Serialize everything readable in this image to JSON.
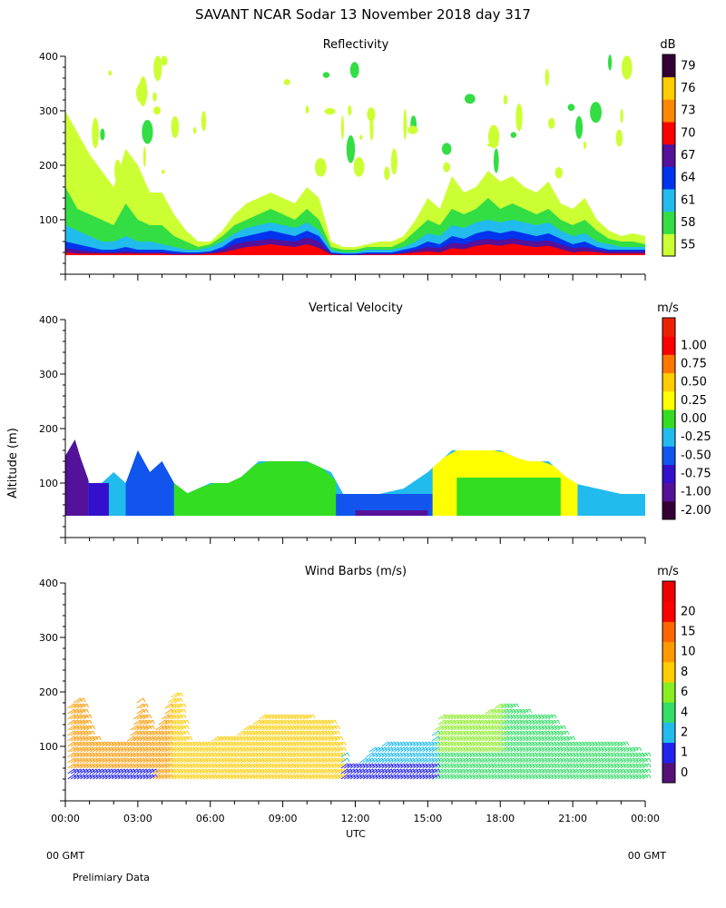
{
  "figure": {
    "title": "SAVANT  NCAR Sodar  13 November 2018  day 317",
    "ylabel": "Altitude (m)",
    "xlabel": "UTC",
    "x_ticks": [
      "00:00",
      "03:00",
      "06:00",
      "09:00",
      "12:00",
      "15:00",
      "18:00",
      "21:00",
      "00:00"
    ],
    "left_footer": "00 GMT",
    "right_footer": "00 GMT",
    "note": "Prelimiary Data"
  },
  "chart_data": [
    {
      "type": "heatmap",
      "title": "Reflectivity",
      "unit": "dB",
      "xlim": [
        0,
        24
      ],
      "ylim": [
        0,
        400
      ],
      "yticks": [
        100,
        200,
        300,
        400
      ],
      "colorbar": {
        "labels": [
          "55",
          "58",
          "61",
          "64",
          "67",
          "70",
          "73",
          "76",
          "79"
        ],
        "colors": [
          "#ccff33",
          "#33dd44",
          "#22bbee",
          "#0033ee",
          "#551199",
          "#ff0000",
          "#ff8800",
          "#ffcc00",
          "#330033"
        ]
      },
      "profile": {
        "x": [
          0,
          0.5,
          1,
          1.5,
          2,
          2.5,
          3,
          3.5,
          4,
          4.5,
          5,
          5.5,
          6,
          6.5,
          7,
          7.5,
          8,
          8.5,
          9,
          9.5,
          10,
          10.5,
          11,
          11.5,
          12,
          12.5,
          13,
          13.5,
          14,
          14.5,
          15,
          15.5,
          16,
          16.5,
          17,
          17.5,
          18,
          18.5,
          19,
          19.5,
          20,
          20.5,
          21,
          21.5,
          22,
          22.5,
          23,
          23.5,
          24
        ],
        "top_55": [
          300,
          260,
          220,
          190,
          160,
          230,
          200,
          150,
          150,
          110,
          80,
          60,
          60,
          80,
          110,
          130,
          140,
          150,
          140,
          130,
          160,
          140,
          60,
          50,
          50,
          55,
          60,
          60,
          70,
          100,
          140,
          120,
          180,
          150,
          160,
          190,
          170,
          180,
          160,
          150,
          170,
          130,
          120,
          140,
          100,
          80,
          70,
          75,
          70
        ],
        "top_58": [
          160,
          120,
          110,
          100,
          90,
          130,
          100,
          90,
          90,
          70,
          60,
          50,
          55,
          70,
          90,
          100,
          110,
          120,
          110,
          100,
          120,
          100,
          50,
          45,
          45,
          50,
          50,
          50,
          60,
          80,
          100,
          90,
          120,
          110,
          120,
          140,
          120,
          130,
          120,
          110,
          120,
          100,
          90,
          100,
          80,
          65,
          60,
          60,
          55
        ],
        "top_61": [
          90,
          80,
          70,
          60,
          60,
          70,
          60,
          60,
          55,
          50,
          45,
          45,
          50,
          60,
          75,
          85,
          90,
          95,
          90,
          85,
          95,
          80,
          45,
          40,
          40,
          45,
          45,
          45,
          50,
          60,
          75,
          70,
          90,
          85,
          95,
          100,
          95,
          100,
          95,
          90,
          95,
          80,
          70,
          75,
          60,
          55,
          50,
          50,
          50
        ],
        "top_64": [
          60,
          55,
          50,
          45,
          45,
          50,
          45,
          45,
          45,
          42,
          40,
          40,
          42,
          50,
          65,
          70,
          75,
          80,
          75,
          70,
          80,
          70,
          40,
          38,
          38,
          40,
          40,
          40,
          45,
          50,
          60,
          55,
          70,
          65,
          75,
          80,
          75,
          80,
          75,
          70,
          75,
          65,
          55,
          60,
          50,
          45,
          45,
          45,
          45
        ],
        "top_67": [
          48,
          45,
          42,
          40,
          40,
          42,
          40,
          40,
          40,
          38,
          38,
          38,
          40,
          45,
          55,
          60,
          62,
          65,
          62,
          60,
          68,
          60,
          38,
          36,
          36,
          38,
          38,
          38,
          40,
          45,
          50,
          48,
          58,
          55,
          62,
          65,
          62,
          66,
          62,
          60,
          62,
          55,
          48,
          50,
          45,
          42,
          42,
          42,
          42
        ],
        "top_70": [
          40,
          38,
          38,
          38,
          38,
          38,
          38,
          38,
          38,
          36,
          36,
          36,
          38,
          40,
          45,
          50,
          52,
          55,
          52,
          50,
          55,
          48,
          36,
          35,
          35,
          36,
          36,
          36,
          38,
          40,
          42,
          40,
          48,
          46,
          52,
          55,
          52,
          56,
          52,
          50,
          52,
          46,
          40,
          42,
          40,
          38,
          38,
          38,
          38
        ]
      }
    },
    {
      "type": "heatmap",
      "title": "Vertical Velocity",
      "unit": "m/s",
      "xlim": [
        0,
        24
      ],
      "ylim": [
        0,
        400
      ],
      "yticks": [
        100,
        200,
        300,
        400
      ],
      "colorbar": {
        "labels": [
          "-2.00",
          "-1.00",
          "-0.75",
          "-0.50",
          "-0.25",
          "0.00",
          "0.25",
          "0.50",
          "0.75",
          "1.00"
        ],
        "colors": [
          "#330033",
          "#551199",
          "#3311cc",
          "#1155ee",
          "#22bbee",
          "#33dd22",
          "#ffff00",
          "#ffcc00",
          "#ff7700",
          "#ff0000",
          "#ee2200"
        ]
      },
      "top": {
        "x": [
          0,
          0.4,
          0.6,
          1.0,
          1.5,
          2.0,
          2.5,
          3.0,
          3.5,
          4.0,
          4.5,
          5.0,
          6.0,
          7.0,
          8.0,
          9.0,
          10.0,
          11.0,
          11.5,
          12.0,
          13.0,
          14.0,
          15.0,
          15.5,
          16.0,
          17.0,
          18.0,
          19.0,
          20.0,
          21.0,
          22.0,
          23.0,
          24.0
        ],
        "alt": [
          150,
          180,
          150,
          100,
          100,
          120,
          100,
          160,
          120,
          140,
          100,
          80,
          100,
          100,
          140,
          140,
          140,
          120,
          80,
          80,
          80,
          90,
          120,
          140,
          160,
          160,
          160,
          140,
          140,
          100,
          90,
          80,
          80
        ]
      },
      "bands": [
        {
          "name": "-1.00",
          "x0": 0,
          "x1": 0.95,
          "alt": [
            180,
            40
          ]
        },
        {
          "name": "-0.75",
          "x0": 0.95,
          "x1": 1.8,
          "alt": [
            100,
            40
          ]
        },
        {
          "name": "-0.50",
          "x0": 2.5,
          "x1": 4.5,
          "alt": [
            160,
            40
          ]
        },
        {
          "name": "0.00",
          "x0": 4.5,
          "x1": 11.2,
          "alt": [
            140,
            40
          ]
        },
        {
          "name": "-0.50",
          "x0": 11.2,
          "x1": 15.2,
          "alt": [
            80,
            40
          ]
        },
        {
          "name": "-1.00",
          "x0": 12.0,
          "x1": 15.0,
          "alt": [
            50,
            40
          ]
        },
        {
          "name": "0.25",
          "x0": 15.2,
          "x1": 21.2,
          "alt": [
            160,
            40
          ]
        },
        {
          "name": "0.00",
          "x0": 16.2,
          "x1": 20.5,
          "alt": [
            110,
            40
          ]
        },
        {
          "name": "-0.25",
          "x0": 21.2,
          "x1": 24,
          "alt": [
            80,
            40
          ]
        }
      ]
    },
    {
      "type": "scatter",
      "title": "Wind Barbs (m/s)",
      "unit": "m/s",
      "xlim": [
        0,
        24
      ],
      "ylim": [
        0,
        400
      ],
      "yticks": [
        100,
        200,
        300,
        400
      ],
      "colorbar": {
        "labels": [
          "0",
          "1",
          "2",
          "4",
          "6",
          "8",
          "10",
          "15",
          "20"
        ],
        "colors": [
          "#551177",
          "#2222ee",
          "#22bbee",
          "#33dd66",
          "#88ee22",
          "#ffcc00",
          "#ff9900",
          "#ff6600",
          "#ff0000",
          "#ee0000"
        ]
      },
      "coverage": {
        "x": [
          0,
          0.5,
          1,
          1.5,
          2,
          2.5,
          3,
          3.5,
          4,
          4.5,
          5,
          6,
          7,
          8,
          9,
          10,
          11,
          11.5,
          12,
          12.5,
          13,
          14,
          15,
          15.5,
          16,
          17,
          18,
          19,
          20,
          21,
          22,
          23,
          24
        ],
        "top": [
          170,
          190,
          120,
          100,
          110,
          100,
          190,
          120,
          160,
          200,
          100,
          110,
          120,
          150,
          150,
          150,
          140,
          70,
          60,
          90,
          100,
          100,
          100,
          160,
          150,
          150,
          180,
          160,
          150,
          100,
          100,
          100,
          80
        ]
      }
    }
  ]
}
